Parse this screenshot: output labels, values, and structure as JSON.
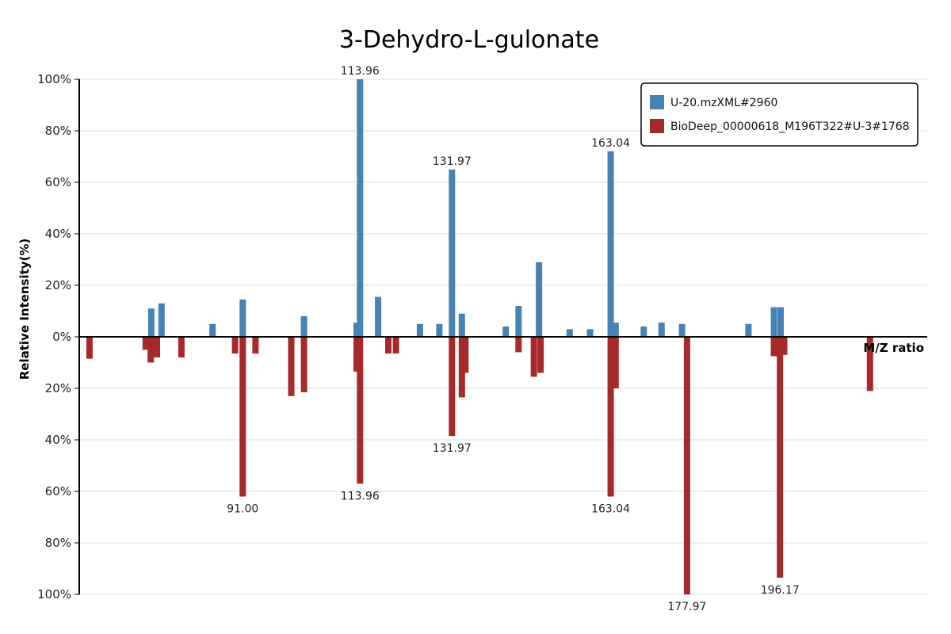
{
  "colors": {
    "top": "#4682b4",
    "bottom": "#a52a2a",
    "grid": "#dddddd",
    "axis": "#000000"
  },
  "chart_data": {
    "type": "bar",
    "title": "3-Dehydro-L-gulonate",
    "xlabel": "M/Z ratio",
    "ylabel": "Relative Intensity(%)",
    "xlim": [
      59,
      225
    ],
    "ylim": [
      -100,
      100
    ],
    "yticks": [
      "100%",
      "80%",
      "60%",
      "40%",
      "20%",
      "0%",
      "20%",
      "40%",
      "60%",
      "80%",
      "100%"
    ],
    "grid": true,
    "legend_position": "top-right",
    "series": [
      {
        "name": "U-20.mzXML#2960",
        "direction": "up",
        "peaks": [
          {
            "mz": 73.1,
            "intensity": 11
          },
          {
            "mz": 75.1,
            "intensity": 13
          },
          {
            "mz": 85.1,
            "intensity": 5
          },
          {
            "mz": 91.0,
            "intensity": 14.5
          },
          {
            "mz": 103.0,
            "intensity": 8
          },
          {
            "mz": 113.3,
            "intensity": 5.5
          },
          {
            "mz": 113.96,
            "intensity": 100,
            "label": "113.96"
          },
          {
            "mz": 117.5,
            "intensity": 15.5
          },
          {
            "mz": 125.7,
            "intensity": 5
          },
          {
            "mz": 129.5,
            "intensity": 5
          },
          {
            "mz": 131.97,
            "intensity": 65,
            "label": "131.97"
          },
          {
            "mz": 133.9,
            "intensity": 9
          },
          {
            "mz": 142.5,
            "intensity": 4
          },
          {
            "mz": 145.0,
            "intensity": 12
          },
          {
            "mz": 149.0,
            "intensity": 29
          },
          {
            "mz": 155.0,
            "intensity": 3
          },
          {
            "mz": 159.0,
            "intensity": 3
          },
          {
            "mz": 163.04,
            "intensity": 72,
            "label": "163.04"
          },
          {
            "mz": 164.0,
            "intensity": 5.5
          },
          {
            "mz": 169.5,
            "intensity": 4
          },
          {
            "mz": 173.0,
            "intensity": 5.5
          },
          {
            "mz": 177.0,
            "intensity": 5
          },
          {
            "mz": 190.0,
            "intensity": 5
          },
          {
            "mz": 195.0,
            "intensity": 11.5
          },
          {
            "mz": 196.3,
            "intensity": 11.5
          }
        ]
      },
      {
        "name": "BioDeep_00000618_M196T322#U-3#1768",
        "direction": "down",
        "peaks": [
          {
            "mz": 61.0,
            "intensity": 8.5
          },
          {
            "mz": 72.0,
            "intensity": 5
          },
          {
            "mz": 73.0,
            "intensity": 10
          },
          {
            "mz": 74.2,
            "intensity": 8
          },
          {
            "mz": 79.0,
            "intensity": 8
          },
          {
            "mz": 89.5,
            "intensity": 6.5
          },
          {
            "mz": 91.0,
            "intensity": 62,
            "label": "91.00"
          },
          {
            "mz": 93.5,
            "intensity": 6.5
          },
          {
            "mz": 100.5,
            "intensity": 23
          },
          {
            "mz": 103.0,
            "intensity": 21.5
          },
          {
            "mz": 113.3,
            "intensity": 13.5
          },
          {
            "mz": 113.96,
            "intensity": 57,
            "label": "113.96"
          },
          {
            "mz": 119.5,
            "intensity": 6.5
          },
          {
            "mz": 121.0,
            "intensity": 6.5
          },
          {
            "mz": 131.97,
            "intensity": 38.5,
            "label": "131.97"
          },
          {
            "mz": 133.9,
            "intensity": 23.5
          },
          {
            "mz": 134.6,
            "intensity": 14
          },
          {
            "mz": 145.0,
            "intensity": 6
          },
          {
            "mz": 148.0,
            "intensity": 15.5
          },
          {
            "mz": 149.3,
            "intensity": 14
          },
          {
            "mz": 163.04,
            "intensity": 62,
            "label": "163.04"
          },
          {
            "mz": 164.0,
            "intensity": 20
          },
          {
            "mz": 177.97,
            "intensity": 100,
            "label": "177.97"
          },
          {
            "mz": 195.0,
            "intensity": 7.5
          },
          {
            "mz": 196.17,
            "intensity": 93.5,
            "label": "196.17"
          },
          {
            "mz": 197.0,
            "intensity": 7
          },
          {
            "mz": 213.8,
            "intensity": 21
          }
        ]
      }
    ]
  }
}
